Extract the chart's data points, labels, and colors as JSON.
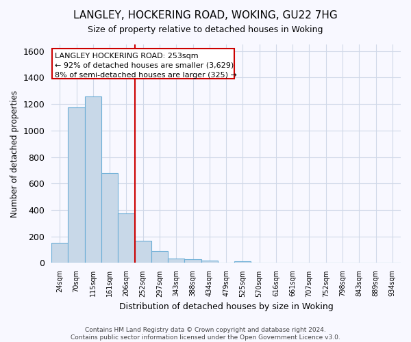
{
  "title": "LANGLEY, HOCKERING ROAD, WOKING, GU22 7HG",
  "subtitle": "Size of property relative to detached houses in Woking",
  "xlabel": "Distribution of detached houses by size in Woking",
  "ylabel": "Number of detached properties",
  "categories": [
    "24sqm",
    "70sqm",
    "115sqm",
    "161sqm",
    "206sqm",
    "252sqm",
    "297sqm",
    "343sqm",
    "388sqm",
    "434sqm",
    "479sqm",
    "525sqm",
    "570sqm",
    "616sqm",
    "661sqm",
    "707sqm",
    "752sqm",
    "798sqm",
    "843sqm",
    "889sqm",
    "934sqm"
  ],
  "values": [
    150,
    1175,
    1255,
    680,
    375,
    170,
    90,
    35,
    30,
    20,
    0,
    15,
    0,
    0,
    0,
    0,
    0,
    0,
    0,
    0,
    0
  ],
  "bar_color": "#c8d8e8",
  "bar_edge_color": "#6baed6",
  "vline_index": 5,
  "vline_color": "#cc0000",
  "annotation_text": "LANGLEY HOCKERING ROAD: 253sqm\n← 92% of detached houses are smaller (3,629)\n8% of semi-detached houses are larger (325) →",
  "annotation_box_color": "white",
  "annotation_box_edge_color": "#cc0000",
  "ylim": [
    0,
    1650
  ],
  "yticks": [
    0,
    200,
    400,
    600,
    800,
    1000,
    1200,
    1400,
    1600
  ],
  "background_color": "#f8f8ff",
  "grid_color": "#d0d8e8",
  "footer": "Contains HM Land Registry data © Crown copyright and database right 2024.\nContains public sector information licensed under the Open Government Licence v3.0."
}
